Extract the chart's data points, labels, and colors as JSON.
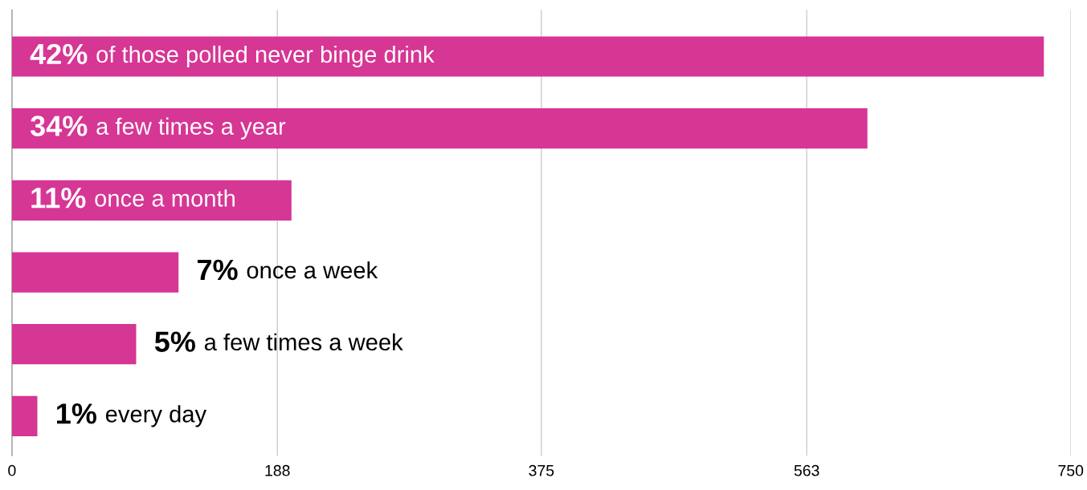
{
  "chart_data": {
    "type": "bar",
    "orientation": "horizontal",
    "categories": [
      "of those polled never binge drink",
      "a few times a year",
      "once a month",
      "once a week",
      "a few times a week",
      "every day"
    ],
    "values": [
      731,
      606,
      198,
      118,
      88,
      18
    ],
    "annotations": [
      "42%",
      "34%",
      "11%",
      "7%",
      "5%",
      "1%"
    ],
    "color": "#d63694",
    "xlim": [
      0,
      750
    ],
    "xticks": [
      0,
      188,
      375,
      563,
      750
    ],
    "grid": "x",
    "tick_labels": "x",
    "legend": false
  }
}
